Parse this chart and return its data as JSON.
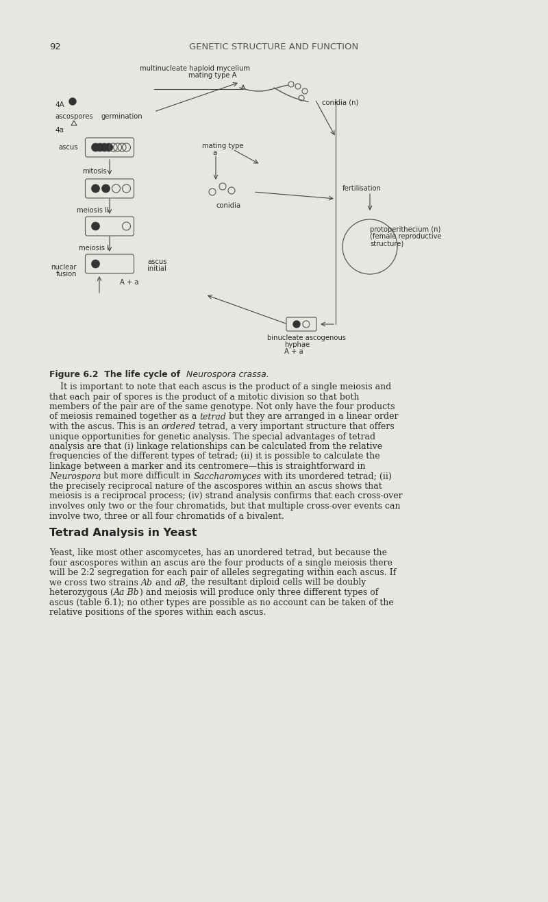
{
  "page_number": "92",
  "header_title": "GENETIC STRUCTURE AND FUNCTION",
  "background_color": "#e8e6e0",
  "text_color": "#2a2a2a",
  "figure_caption": "Figure 6.2  The life cycle of ",
  "figure_caption_italic": "Neurospora crassa.",
  "body_paragraph1": "It is important to note that each ascus is the product of a single meiosis and that each pair of spores is the product of a mitotic division so that both members of the pair are of the same genotype. Not only have the four products of meiosis remained together as a tetrad but they are arranged in a linear order with the ascus. This is an ordered tetrad, a very important structure that offers unique opportunities for genetic analysis. The special advantages of tetrad analysis are that (i) linkage relationships can be calculated from the relative frequencies of the different types of tetrad; (ii) it is possible to calculate the linkage between a marker and its centromere—this is straightforward in Neurospora but more difficult in Saccharomyces with its unordered tetrad; (ii) the precisely reciprocal nature of the ascospores within an ascus shows that meiosis is a reciprocal process; (iv) strand analysis confirms that each cross-over involves only two or the four chromatids, but that multiple cross-over events can involve two, three or all four chromatids of a bivalent.",
  "section_title": "Tetrad Analysis in Yeast",
  "body_paragraph2": "Yeast, like most other ascomycetes, has an unordered tetrad, but because the four ascospores within an ascus are the four products of a single meiosis there will be 2:2 segregation for each pair of alleles segregating within each ascus. If we cross two strains Ab and aB, the resultant diploid cells will be doubly heterozygous (Aa Bb) and meiosis will produce only three different types of ascus (table 6.1); no other types are possible as no account can be taken of the relative positions of the spores within each ascus."
}
